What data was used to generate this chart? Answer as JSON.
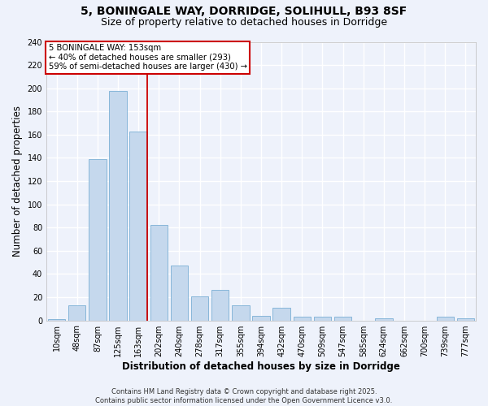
{
  "title1": "5, BONINGALE WAY, DORRIDGE, SOLIHULL, B93 8SF",
  "title2": "Size of property relative to detached houses in Dorridge",
  "xlabel": "Distribution of detached houses by size in Dorridge",
  "ylabel": "Number of detached properties",
  "categories": [
    "10sqm",
    "48sqm",
    "87sqm",
    "125sqm",
    "163sqm",
    "202sqm",
    "240sqm",
    "278sqm",
    "317sqm",
    "355sqm",
    "394sqm",
    "432sqm",
    "470sqm",
    "509sqm",
    "547sqm",
    "585sqm",
    "624sqm",
    "662sqm",
    "700sqm",
    "739sqm",
    "777sqm"
  ],
  "values": [
    1,
    13,
    139,
    198,
    163,
    82,
    47,
    21,
    26,
    13,
    4,
    11,
    3,
    3,
    3,
    0,
    2,
    0,
    0,
    3,
    2
  ],
  "bar_color": "#c5d8ed",
  "bar_edge_color": "#7aafd4",
  "red_line_index": 4,
  "annotation_title": "5 BONINGALE WAY: 153sqm",
  "annotation_line1": "← 40% of detached houses are smaller (293)",
  "annotation_line2": "59% of semi-detached houses are larger (430) →",
  "annotation_box_color": "#ffffff",
  "annotation_box_edge_color": "#cc0000",
  "ylim": [
    0,
    240
  ],
  "yticks": [
    0,
    20,
    40,
    60,
    80,
    100,
    120,
    140,
    160,
    180,
    200,
    220,
    240
  ],
  "background_color": "#eef2fb",
  "grid_color": "#ffffff",
  "footer": "Contains HM Land Registry data © Crown copyright and database right 2025.\nContains public sector information licensed under the Open Government Licence v3.0.",
  "title_fontsize": 10,
  "subtitle_fontsize": 9,
  "axis_label_fontsize": 8.5,
  "tick_fontsize": 7,
  "footer_fontsize": 6
}
